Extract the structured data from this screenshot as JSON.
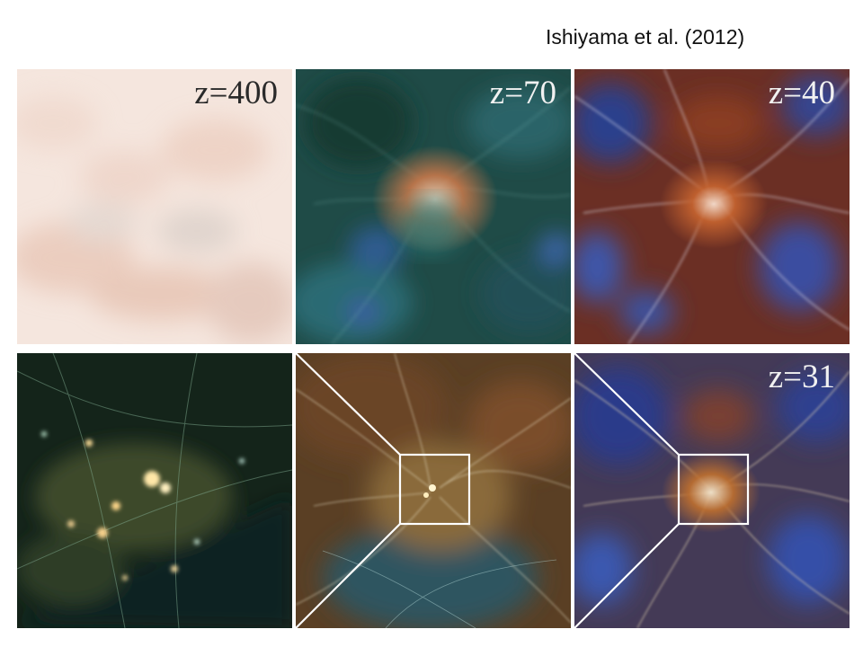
{
  "citation": "Ishiyama et al. (2012)",
  "panels": {
    "top_left": {
      "label": "z=400"
    },
    "top_mid": {
      "label": "z=70"
    },
    "top_right": {
      "label": "z=40"
    },
    "bot_right": {
      "label": "z=31"
    }
  },
  "colors": {
    "background": "#ffffff",
    "cream_field": "#f6e7df",
    "teal_field": "#214f4a",
    "rust_field": "#6a3128",
    "dark_green_field": "#15261b",
    "sepia_field": "#4d3d26",
    "blue_violet_field": "#3c3448",
    "zoom_box": "#ffffff"
  }
}
